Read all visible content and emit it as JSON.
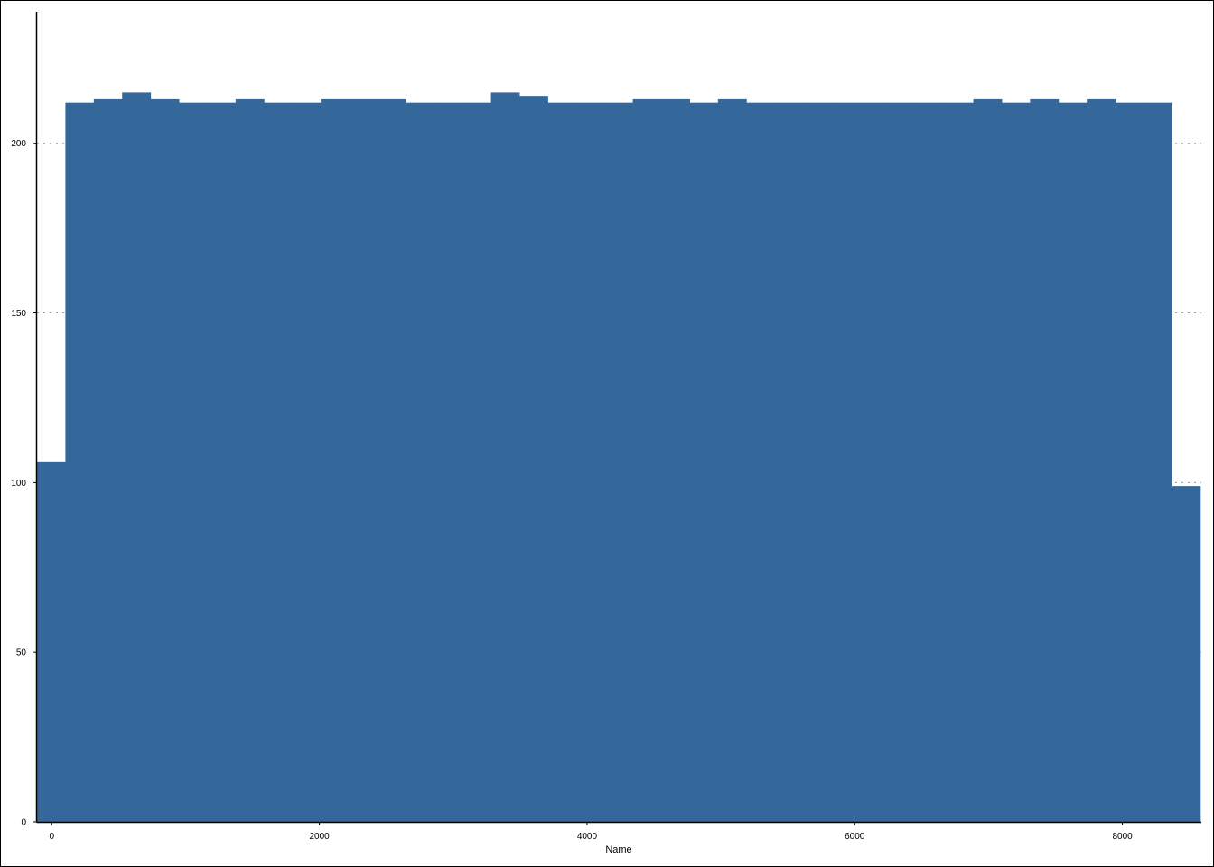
{
  "chart_data": {
    "type": "bar",
    "subtype": "histogram",
    "title": "",
    "xlabel": "Name",
    "ylabel": "",
    "color": "#35689a",
    "grid": "horizontal dotted, drawn only in the side gaps",
    "xlim": [
      -110,
      8590
    ],
    "ylim": [
      0,
      238
    ],
    "xticks": [
      0,
      2000,
      4000,
      6000,
      8000
    ],
    "yticks": [
      0,
      50,
      100,
      150,
      200
    ],
    "bin_width": 212,
    "bins_start": [
      -110,
      102,
      314,
      526,
      738,
      950,
      1162,
      1374,
      1586,
      1798,
      2010,
      2222,
      2434,
      2646,
      2858,
      3070,
      3282,
      3494,
      3706,
      3918,
      4130,
      4342,
      4554,
      4766,
      4978,
      5190,
      5402,
      5614,
      5826,
      6038,
      6250,
      6462,
      6674,
      6886,
      7098,
      7310,
      7522,
      7734,
      7946,
      8158,
      8370
    ],
    "values": [
      106,
      212,
      213,
      215,
      213,
      212,
      212,
      213,
      212,
      212,
      213,
      213,
      213,
      212,
      212,
      212,
      215,
      214,
      212,
      212,
      212,
      213,
      213,
      212,
      213,
      212,
      212,
      212,
      212,
      212,
      212,
      212,
      212,
      213,
      212,
      213,
      212,
      213,
      212,
      212,
      99
    ]
  }
}
